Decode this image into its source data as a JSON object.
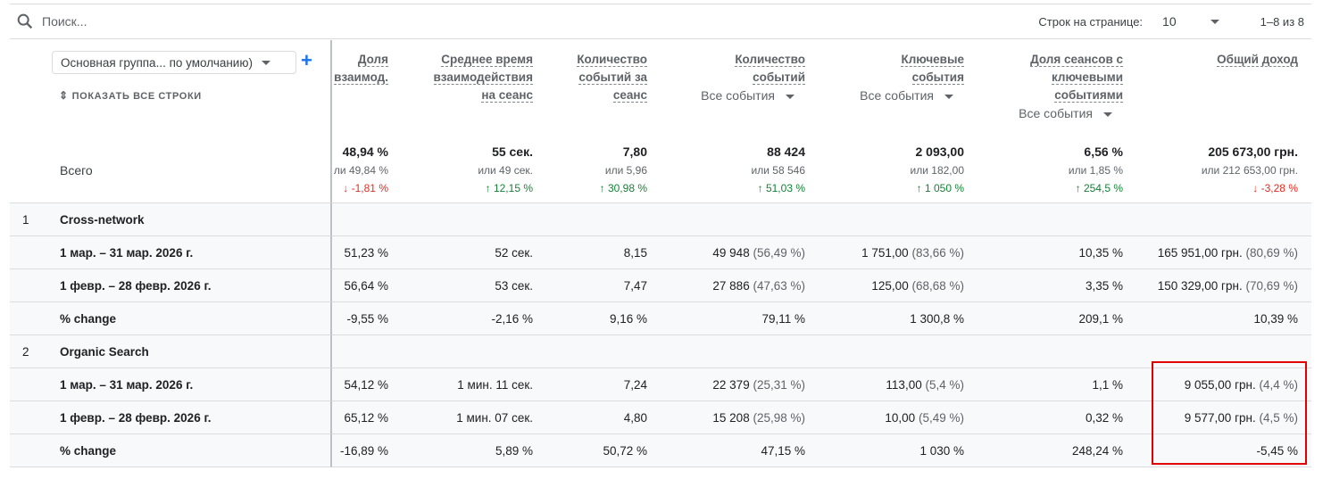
{
  "toolbar": {
    "search_placeholder": "Поиск...",
    "rows_per_page_label": "Строк на странице:",
    "rows_per_page_value": "10",
    "range": "1–8 из 8"
  },
  "dimension": {
    "selector": "Основная группа... по умолчанию)",
    "show_all": "ПОКАЗАТЬ ВСЕ СТРОКИ",
    "total_label": "Всего"
  },
  "columns": [
    {
      "name": [
        "Доля",
        "взаимод."
      ],
      "total": "48,94 %",
      "compare": "ли 49,84 %",
      "change": "↓ -1,81 %",
      "dir": "down"
    },
    {
      "name": [
        "Среднее время",
        "взаимодействия",
        "на сеанс"
      ],
      "total": "55 сек.",
      "compare": "или 49 сек.",
      "change": "↑ 12,15 %",
      "dir": "up"
    },
    {
      "name": [
        "Количество",
        "событий за",
        "сеанс"
      ],
      "total": "7,80",
      "compare": "или 5,96",
      "change": "↑ 30,98 %",
      "dir": "up"
    },
    {
      "name": [
        "Количество",
        "событий"
      ],
      "filter": "Все события",
      "total": "88 424",
      "compare": "или 58 546",
      "change": "↑ 51,03 %",
      "dir": "up"
    },
    {
      "name": [
        "Ключевые",
        "события"
      ],
      "filter": "Все события",
      "total": "2 093,00",
      "compare": "или 182,00",
      "change": "↑ 1 050 %",
      "dir": "up"
    },
    {
      "name": [
        "Доля сеансов с",
        "ключевыми",
        "событиями"
      ],
      "filter": "Все события",
      "total": "6,56 %",
      "compare": "или 1,85 %",
      "change": "↑ 254,5 %",
      "dir": "up"
    },
    {
      "name": [
        "Общий доход"
      ],
      "total": "205 673,00 грн.",
      "compare": "или 212 653,00 грн.",
      "change": "↓ -3,28 %",
      "dir": "down"
    }
  ],
  "groups": [
    {
      "num": "1",
      "name": "Cross-network",
      "rows": [
        {
          "label": "1 мар. – 31 мар. 2026 г.",
          "cells": [
            [
              "51,23 %",
              ""
            ],
            [
              "52 сек.",
              ""
            ],
            [
              "8,15",
              ""
            ],
            [
              "49 948",
              "(56,49 %)"
            ],
            [
              "1 751,00",
              "(83,66 %)"
            ],
            [
              "10,35 %",
              ""
            ],
            [
              "165 951,00 грн.",
              "(80,69 %)"
            ]
          ]
        },
        {
          "label": "1 февр. – 28 февр. 2026 г.",
          "cells": [
            [
              "56,64 %",
              ""
            ],
            [
              "53 сек.",
              ""
            ],
            [
              "7,47",
              ""
            ],
            [
              "27 886",
              "(47,63 %)"
            ],
            [
              "125,00",
              "(68,68 %)"
            ],
            [
              "3,35 %",
              ""
            ],
            [
              "150 329,00 грн.",
              "(70,69 %)"
            ]
          ]
        },
        {
          "label": "% change",
          "cells": [
            [
              "-9,55 %",
              ""
            ],
            [
              "-2,16 %",
              ""
            ],
            [
              "9,16 %",
              ""
            ],
            [
              "79,11 %",
              ""
            ],
            [
              "1 300,8 %",
              ""
            ],
            [
              "209,1 %",
              ""
            ],
            [
              "10,39 %",
              ""
            ]
          ]
        }
      ]
    },
    {
      "num": "2",
      "name": "Organic Search",
      "rows": [
        {
          "label": "1 мар. – 31 мар. 2026 г.",
          "cells": [
            [
              "54,12 %",
              ""
            ],
            [
              "1 мин. 11 сек.",
              ""
            ],
            [
              "7,24",
              ""
            ],
            [
              "22 379",
              "(25,31 %)"
            ],
            [
              "113,00",
              "(5,4 %)"
            ],
            [
              "1,1 %",
              ""
            ],
            [
              "9 055,00 грн.",
              "(4,4 %)"
            ]
          ]
        },
        {
          "label": "1 февр. – 28 февр. 2026 г.",
          "cells": [
            [
              "65,12 %",
              ""
            ],
            [
              "1 мин. 07 сек.",
              ""
            ],
            [
              "4,80",
              ""
            ],
            [
              "15 208",
              "(25,98 %)"
            ],
            [
              "10,00",
              "(5,49 %)"
            ],
            [
              "0,32 %",
              ""
            ],
            [
              "9 577,00 грн.",
              "(4,5 %)"
            ]
          ]
        },
        {
          "label": "% change",
          "cells": [
            [
              "-16,89 %",
              ""
            ],
            [
              "5,89 %",
              ""
            ],
            [
              "50,72 %",
              ""
            ],
            [
              "47,15 %",
              ""
            ],
            [
              "1 030 %",
              ""
            ],
            [
              "248,24 %",
              ""
            ],
            [
              "-5,45 %",
              ""
            ]
          ]
        }
      ]
    }
  ]
}
